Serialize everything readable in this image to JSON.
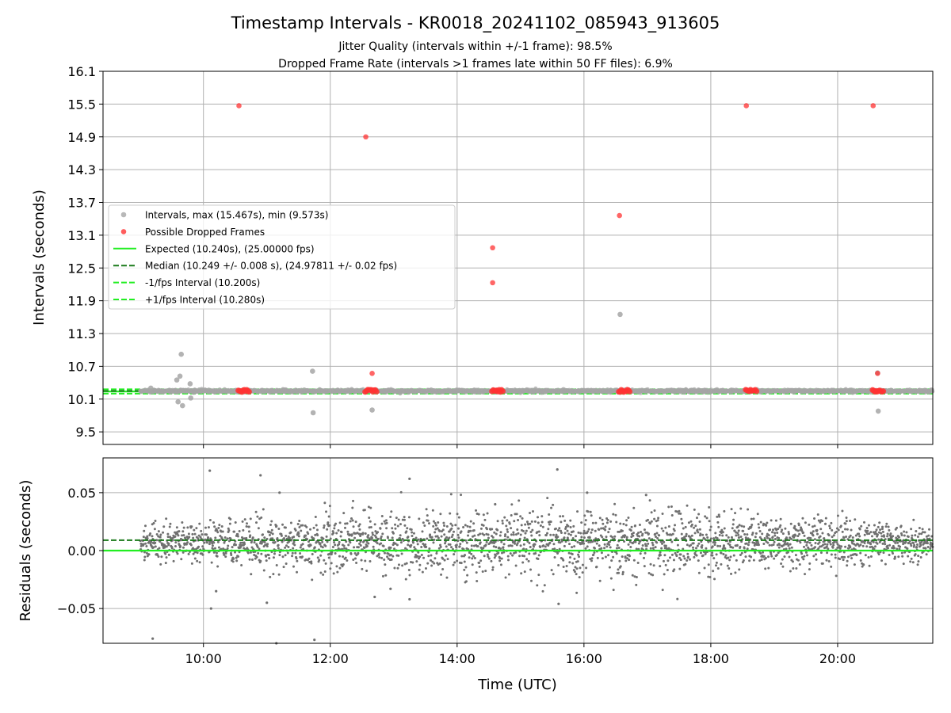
{
  "title": "Timestamp Intervals - KR0018_20241102_085943_913605",
  "subtitle_lines": [
    "Jitter Quality (intervals within +/-1 frame): 98.5%",
    "Dropped Frame Rate (intervals >1 frames late within 50 FF files): 6.9%"
  ],
  "colors": {
    "intervals": "#a6a6a6",
    "dropped": "#ff3333",
    "expected": "#22ee22",
    "median": "#1a7a1a",
    "bounds": "#22ee22",
    "residuals": "#707070",
    "grid": "#b0b0b0"
  },
  "chart_data": [
    {
      "type": "scatter",
      "ylabel": "Intervals (seconds)",
      "xlim_hours": [
        8.4167,
        21.5
      ],
      "ylim": [
        9.27,
        16.1
      ],
      "yticks": [
        "9.5",
        "10.1",
        "10.7",
        "11.3",
        "11.9",
        "12.5",
        "13.1",
        "13.7",
        "14.3",
        "14.9",
        "15.5",
        "16.1"
      ],
      "ytick_values": [
        9.5,
        10.1,
        10.7,
        11.3,
        11.9,
        12.5,
        13.1,
        13.7,
        14.3,
        14.9,
        15.5,
        16.1
      ],
      "grid": true,
      "legend_position": "center-left",
      "legend": [
        {
          "label": "Intervals, max (15.467s), min (9.573s)",
          "kind": "point",
          "series": "intervals"
        },
        {
          "label": "Possible Dropped Frames",
          "kind": "point",
          "series": "dropped"
        },
        {
          "label": "Expected (10.240s), (25.00000 fps)",
          "kind": "solid",
          "series": "expected"
        },
        {
          "label": "Median (10.249 +/- 0.008 s), (24.97811 +/- 0.02 fps)",
          "kind": "dashed",
          "series": "median"
        },
        {
          "label": "-1/fps Interval (10.200s)",
          "kind": "dashed",
          "series": "bounds"
        },
        {
          "label": "+1/fps Interval (10.280s)",
          "kind": "dashed",
          "series": "bounds"
        }
      ],
      "reference_lines": {
        "expected": 10.24,
        "median": 10.249,
        "lower": 10.2,
        "upper": 10.28
      },
      "series": [
        {
          "name": "Intervals",
          "x_hours": [
            9.17,
            9.58,
            9.6,
            9.63,
            9.65,
            9.67,
            9.79,
            9.8,
            11.72,
            11.73,
            12.66,
            16.57,
            20.63,
            20.64
          ],
          "values": [
            10.3,
            10.45,
            10.05,
            10.52,
            10.92,
            9.98,
            10.38,
            10.12,
            10.61,
            9.85,
            9.9,
            11.65,
            10.58,
            9.88
          ]
        },
        {
          "name": "Possible Dropped Frames",
          "x_hours": [
            10.56,
            12.56,
            14.56,
            14.56,
            16.56,
            18.56,
            20.56,
            12.66,
            20.63
          ],
          "values": [
            15.47,
            14.9,
            12.87,
            12.23,
            13.46,
            15.47,
            15.47,
            10.57,
            10.57
          ]
        }
      ],
      "dropped_clusters": [
        {
          "x_start": 10.55,
          "x_end": 10.72,
          "value": 10.25
        },
        {
          "x_start": 12.55,
          "x_end": 12.73,
          "value": 10.25
        },
        {
          "x_start": 14.55,
          "x_end": 14.72,
          "value": 10.25
        },
        {
          "x_start": 16.55,
          "x_end": 16.72,
          "value": 10.25
        },
        {
          "x_start": 18.55,
          "x_end": 18.72,
          "value": 10.25
        },
        {
          "x_start": 20.55,
          "x_end": 20.72,
          "value": 10.25
        }
      ]
    },
    {
      "type": "scatter",
      "xlabel": "Time (UTC)",
      "ylabel": "Residuals (seconds)",
      "xlim_hours": [
        8.4167,
        21.5
      ],
      "ylim": [
        -0.08,
        0.08
      ],
      "yticks": [
        "−0.05",
        "0.00",
        "0.05"
      ],
      "ytick_values": [
        -0.05,
        0.0,
        0.05
      ],
      "xticks": [
        "10:00",
        "12:00",
        "14:00",
        "16:00",
        "18:00",
        "20:00"
      ],
      "xtick_values": [
        10,
        12,
        14,
        16,
        18,
        20
      ],
      "grid": true,
      "reference_lines": {
        "zero": 0.0,
        "median_offset": 0.009
      },
      "noise_model": {
        "x_start": 9.0,
        "x_end": 21.5,
        "points": 2600,
        "center": 0.007,
        "spread_edges": 0.007,
        "spread_middle": 0.014
      },
      "outliers": {
        "x_hours": [
          9.2,
          10.1,
          10.12,
          10.2,
          10.9,
          11.0,
          11.15,
          11.75,
          12.7,
          13.25,
          13.25,
          14.6,
          15.58,
          15.6,
          16.05,
          16.98,
          11.2,
          12.95
        ],
        "values": [
          -0.076,
          0.069,
          -0.05,
          -0.035,
          0.065,
          -0.045,
          -0.08,
          -0.077,
          -0.04,
          0.062,
          -0.042,
          0.04,
          0.07,
          -0.046,
          0.05,
          0.048,
          0.05,
          -0.033
        ]
      }
    }
  ]
}
